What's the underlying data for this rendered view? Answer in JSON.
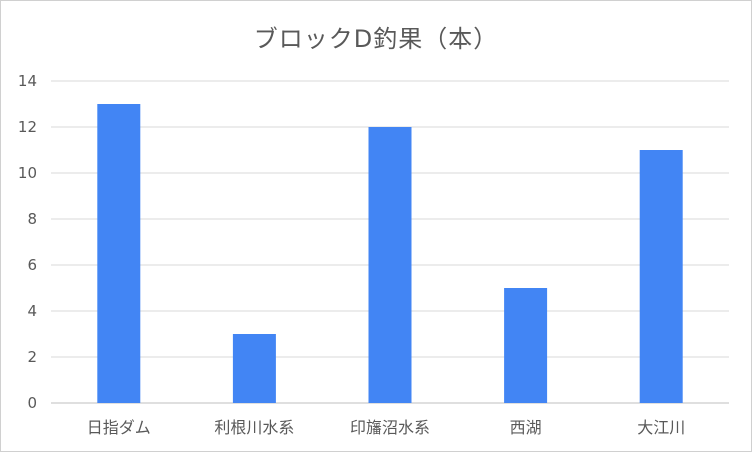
{
  "chart_data": {
    "type": "bar",
    "title": "ブロックD釣果（本）",
    "categories": [
      "日指ダム",
      "利根川水系",
      "印旛沼水系",
      "西湖",
      "大江川"
    ],
    "values": [
      13,
      3,
      12,
      5,
      11
    ],
    "ylim": [
      0,
      14
    ],
    "yticks": [
      0,
      2,
      4,
      6,
      8,
      10,
      12,
      14
    ],
    "grid": true,
    "legend": "none",
    "bar_color": "#4285f4"
  }
}
